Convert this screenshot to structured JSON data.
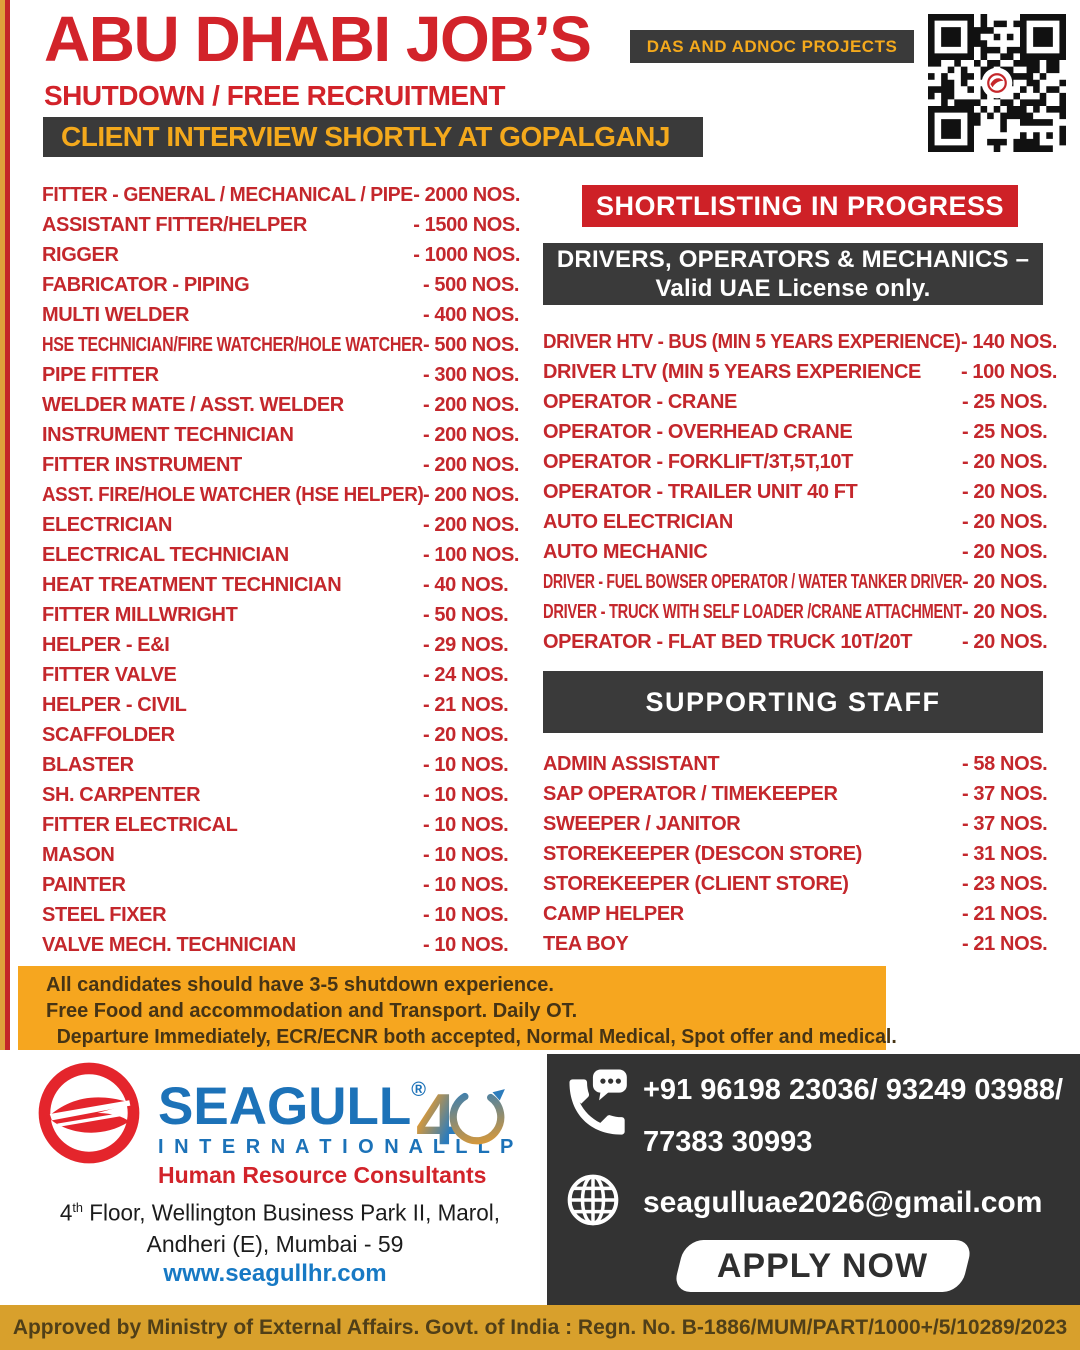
{
  "header": {
    "title": "ABU DHABI JOB’S",
    "subtitle": "SHUTDOWN / FREE RECRUITMENT",
    "badge": "DAS AND ADNOC PROJECTS",
    "banner": "CLIENT INTERVIEW SHORTLY AT GOPALGANJ",
    "qr_icon": "qr-code"
  },
  "left_jobs": [
    {
      "title": "FITTER  - GENERAL / MECHANICAL / PIPE",
      "count": "- 2000 NOS."
    },
    {
      "title": "ASSISTANT FITTER/HELPER",
      "count": "- 1500 NOS."
    },
    {
      "title": "RIGGER",
      "count": "- 1000 NOS."
    },
    {
      "title": "FABRICATOR - PIPING",
      "count": "- 500  NOS."
    },
    {
      "title": "MULTI WELDER",
      "count": "- 400 NOS."
    },
    {
      "title": "HSE TECHNICIAN/FIRE WATCHER/HOLE WATCHER",
      "count": "- 500 NOS."
    },
    {
      "title": "PIPE FITTER",
      "count": "- 300 NOS."
    },
    {
      "title": "WELDER MATE / ASST. WELDER",
      "count": "- 200 NOS."
    },
    {
      "title": "INSTRUMENT TECHNICIAN",
      "count": "- 200 NOS."
    },
    {
      "title": "FITTER INSTRUMENT",
      "count": "- 200 NOS."
    },
    {
      "title": "ASST. FIRE/HOLE WATCHER (HSE HELPER)",
      "count": "- 200 NOS."
    },
    {
      "title": "ELECTRICIAN",
      "count": "- 200 NOS."
    },
    {
      "title": "ELECTRICAL TECHNICIAN",
      "count": "- 100 NOS."
    },
    {
      "title": "HEAT TREATMENT TECHNICIAN",
      "count": "- 40 NOS."
    },
    {
      "title": "FITTER MILLWRIGHT",
      "count": "- 50 NOS."
    },
    {
      "title": "HELPER - E&I",
      "count": "- 29 NOS."
    },
    {
      "title": "FITTER VALVE",
      "count": "- 24 NOS."
    },
    {
      "title": "HELPER - CIVIL",
      "count": "- 21 NOS."
    },
    {
      "title": "SCAFFOLDER",
      "count": "- 20 NOS."
    },
    {
      "title": "BLASTER",
      "count": "- 10 NOS."
    },
    {
      "title": "SH. CARPENTER",
      "count": "- 10 NOS."
    },
    {
      "title": "FITTER ELECTRICAL",
      "count": "- 10 NOS."
    },
    {
      "title": "MASON",
      "count": "- 10 NOS."
    },
    {
      "title": "PAINTER",
      "count": "- 10 NOS."
    },
    {
      "title": "STEEL FIXER",
      "count": "- 10 NOS."
    },
    {
      "title": "VALVE MECH. TECHNICIAN",
      "count": "- 10 NOS."
    }
  ],
  "right": {
    "shortlisting_banner": "SHORTLISTING IN PROGRESS",
    "drivers_header_line1": "DRIVERS, OPERATORS & MECHANICS –",
    "drivers_header_line2": "Valid UAE License only.",
    "drivers": [
      {
        "title": "DRIVER HTV - BUS (MIN 5 YEARS EXPERIENCE)",
        "count": "- 140 NOS."
      },
      {
        "title": "DRIVER LTV (MIN 5 YEARS EXPERIENCE",
        "count": "- 100 NOS."
      },
      {
        "title": "OPERATOR - CRANE",
        "count": "- 25 NOS."
      },
      {
        "title": "OPERATOR - OVERHEAD CRANE",
        "count": "- 25 NOS."
      },
      {
        "title": "OPERATOR - FORKLIFT/3T,5T,10T",
        "count": "- 20 NOS."
      },
      {
        "title": "OPERATOR - TRAILER UNIT 40 FT",
        "count": "- 20 NOS."
      },
      {
        "title": "AUTO ELECTRICIAN",
        "count": "- 20 NOS."
      },
      {
        "title": "AUTO MECHANIC",
        "count": "- 20 NOS."
      },
      {
        "title": "DRIVER - FUEL BOWSER OPERATOR / WATER TANKER DRIVER",
        "count": "- 20 NOS."
      },
      {
        "title": "DRIVER - TRUCK WITH SELF LOADER /CRANE ATTACHMENT",
        "count": "- 20 NOS."
      },
      {
        "title": "OPERATOR - FLAT BED TRUCK 10T/20T",
        "count": "- 20 NOS."
      }
    ],
    "supporting_header": "SUPPORTING STAFF",
    "supporting": [
      {
        "title": "ADMIN ASSISTANT",
        "count": "- 58 NOS."
      },
      {
        "title": "SAP OPERATOR / TIMEKEEPER",
        "count": "- 37 NOS."
      },
      {
        "title": "SWEEPER / JANITOR",
        "count": "- 37 NOS."
      },
      {
        "title": "STOREKEEPER (DESCON STORE)",
        "count": "- 31 NOS."
      },
      {
        "title": "STOREKEEPER (CLIENT STORE)",
        "count": "- 23 NOS."
      },
      {
        "title": "CAMP HELPER",
        "count": "- 21 NOS."
      },
      {
        "title": "TEA BOY",
        "count": "- 21 NOS."
      }
    ]
  },
  "notes": [
    "All candidates should have 3-5 shutdown experience.",
    "Free Food and accommodation and Transport. Daily OT.",
    "Departure Immediately, ECR/ECNR both accepted, Normal Medical, Spot offer and medical."
  ],
  "footer": {
    "company": "SEAGULL",
    "company_reg": "®",
    "company_sub": "I N T E R N A T I O N A L  L L P",
    "company_tag": "Human Resource Consultants",
    "anniversary": "4",
    "address_floor": "4",
    "address_sup": "th",
    "address_rest": " Floor, Wellington Business Park II, Marol,",
    "address_line2": "Andheri (E), Mumbai - 59",
    "website": "www.seagullhr.com",
    "phone_line1": "+91 96198 23036/ 93249 03988/",
    "phone_line2": "77383 30993",
    "email": "seagulluae2026@gmail.com",
    "apply_button": "APPLY NOW",
    "approval": "Approved by Ministry of External Affairs. Govt. of India : Regn. No. B-1886/MUM/PART/1000+/5/10289/2023"
  },
  "colors": {
    "red": "#C4272C",
    "red-bright": "#D2232A",
    "red-banner": "#CE2127",
    "dark": "#3A3A3A",
    "dark-box": "#333333",
    "amber": "#F4A91C",
    "amber-bg": "#F6A61F",
    "note-text": "#463415",
    "gold": "#D8A02C",
    "approval-text": "#503F18",
    "blue": "#1C72B8",
    "link": "#1779C4",
    "stripe-yellow": "#DFA23B",
    "stripe-red": "#C32728"
  }
}
